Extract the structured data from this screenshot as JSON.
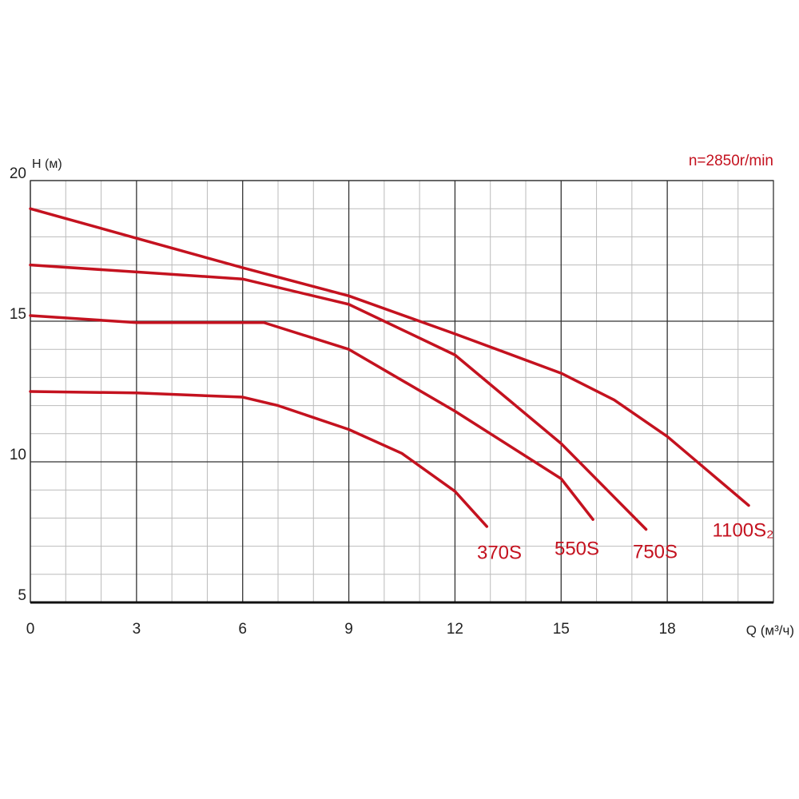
{
  "chart_data": {
    "type": "line",
    "y_label": "H (м)",
    "x_label": "Q (м³/ч)",
    "annotation": "n=2850r/min",
    "xlim": [
      0,
      21
    ],
    "ylim": [
      5,
      20
    ],
    "xticks": [
      0,
      3,
      6,
      9,
      12,
      15,
      18
    ],
    "yticks": [
      5,
      10,
      15,
      20
    ],
    "xminorticks": [
      1,
      2,
      4,
      5,
      7,
      8,
      10,
      11,
      13,
      14,
      16,
      17,
      19,
      20
    ],
    "yminorticks": [
      6,
      7,
      8,
      9,
      11,
      12,
      13,
      14,
      16,
      17,
      18,
      19
    ],
    "grid": true,
    "series": [
      {
        "name": "370S",
        "color": "#c4121f",
        "x": [
          0,
          3,
          6,
          7,
          9,
          10.5,
          12,
          12.9
        ],
        "values": [
          12.5,
          12.45,
          12.3,
          12.0,
          11.15,
          10.3,
          8.95,
          7.7
        ]
      },
      {
        "name": "550S",
        "color": "#c4121f",
        "x": [
          0,
          3,
          6.6,
          9,
          12,
          15,
          15.9
        ],
        "values": [
          15.2,
          14.95,
          14.95,
          14.0,
          11.8,
          9.4,
          7.95
        ]
      },
      {
        "name": "750S",
        "color": "#c4121f",
        "x": [
          0,
          3,
          6,
          9,
          12,
          15,
          17.4
        ],
        "values": [
          17.0,
          16.75,
          16.5,
          15.6,
          13.8,
          10.65,
          7.6
        ]
      },
      {
        "name": "1100S₂",
        "color": "#c4121f",
        "x": [
          0,
          3,
          6,
          9,
          12,
          15,
          16.5,
          18,
          20.3
        ],
        "values": [
          19.0,
          17.95,
          16.9,
          15.9,
          14.55,
          13.15,
          12.2,
          10.9,
          8.45
        ]
      }
    ]
  }
}
